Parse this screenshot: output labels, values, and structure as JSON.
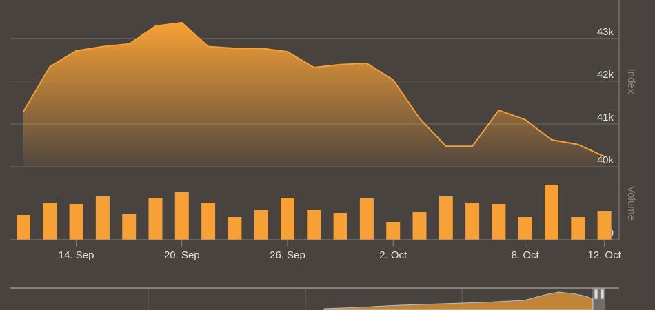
{
  "chart_data": [
    {
      "type": "area",
      "y_label": "Index",
      "categories": [
        null,
        null,
        "14. Sep",
        null,
        null,
        null,
        "20. Sep",
        null,
        null,
        null,
        "26. Sep",
        null,
        null,
        null,
        "2. Oct",
        null,
        null,
        null,
        null,
        "8. Oct",
        null,
        null,
        "12. Oct"
      ],
      "series": [
        {
          "name": "Index",
          "color": "#f7a035",
          "values": [
            41290,
            42340,
            42710,
            42810,
            42870,
            43290,
            43370,
            42810,
            42770,
            42770,
            42690,
            42320,
            42390,
            42420,
            42030,
            41130,
            40480,
            40480,
            41320,
            41100,
            40630,
            40520,
            40240
          ]
        }
      ],
      "ylim": [
        40000,
        43900
      ],
      "yticks": [
        {
          "value": 40000,
          "label": "40k"
        },
        {
          "value": 41000,
          "label": "41k"
        },
        {
          "value": 42000,
          "label": "42k"
        },
        {
          "value": 43000,
          "label": "43k"
        }
      ],
      "grid": true
    },
    {
      "type": "bar",
      "y_label": "Volume",
      "series": [
        {
          "name": "Volume",
          "color": "#f7a035",
          "values": [
            36,
            54,
            52,
            63,
            37,
            61,
            69,
            54,
            33,
            43,
            61,
            43,
            39,
            60,
            26,
            40,
            63,
            54,
            52,
            33,
            80,
            33,
            41
          ]
        }
      ],
      "ylim": [
        0,
        98
      ],
      "yticks": [
        0
      ]
    }
  ]
}
